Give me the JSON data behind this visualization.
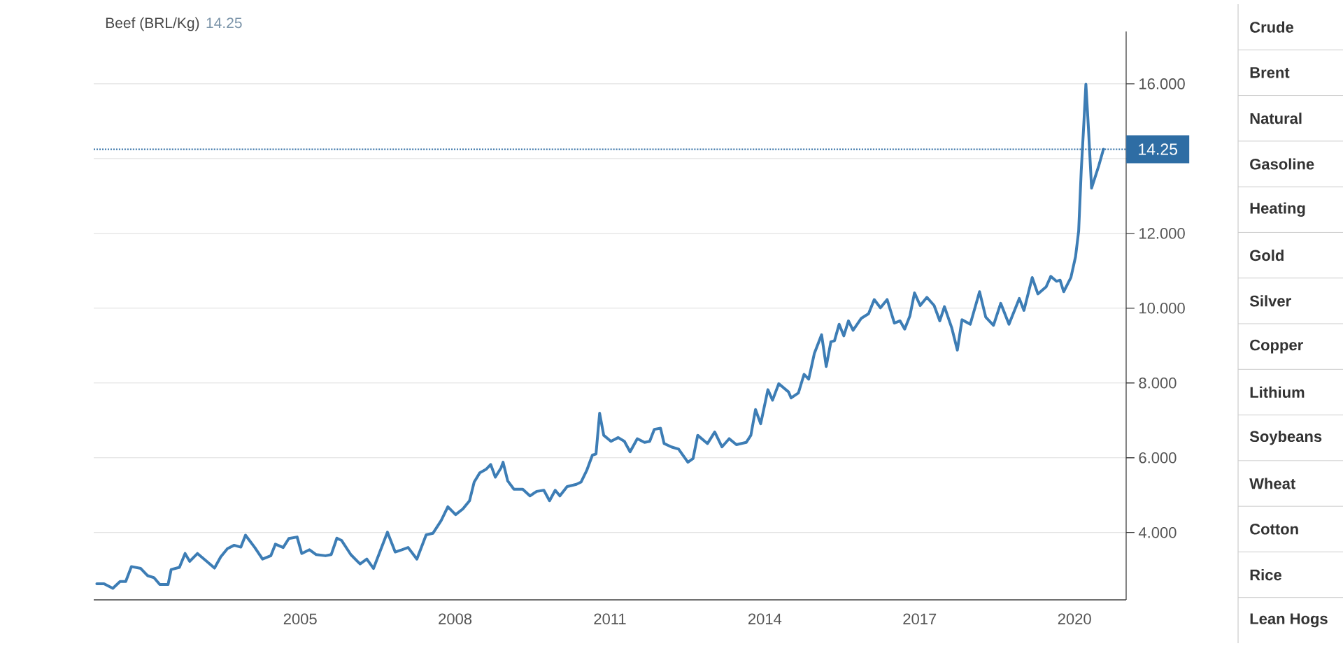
{
  "chart_data": {
    "type": "line",
    "title": "Beef (BRL/Kg)",
    "subtitle": "14.25",
    "color": "#3d7db5",
    "x": [
      2001.06,
      2001.2,
      2001.37,
      2001.51,
      2001.62,
      2001.73,
      2001.91,
      2002.04,
      2002.17,
      2002.28,
      2002.44,
      2002.5,
      2002.66,
      2002.77,
      2002.86,
      2003.01,
      2003.19,
      2003.34,
      2003.46,
      2003.59,
      2003.72,
      2003.85,
      2003.94,
      2004.12,
      2004.27,
      2004.43,
      2004.52,
      2004.67,
      2004.78,
      2004.94,
      2005.03,
      2005.18,
      2005.31,
      2005.49,
      2005.6,
      2005.71,
      2005.8,
      2005.98,
      2006.16,
      2006.29,
      2006.42,
      2006.55,
      2006.69,
      2006.84,
      2006.97,
      2007.09,
      2007.26,
      2007.44,
      2007.57,
      2007.73,
      2007.86,
      2008.01,
      2008.15,
      2008.28,
      2008.37,
      2008.48,
      2008.6,
      2008.69,
      2008.78,
      2008.89,
      2008.93,
      2009.02,
      2009.14,
      2009.31,
      2009.45,
      2009.58,
      2009.72,
      2009.83,
      2009.94,
      2010.03,
      2010.17,
      2010.35,
      2010.44,
      2010.55,
      2010.66,
      2010.73,
      2010.8,
      2010.88,
      2011.02,
      2011.16,
      2011.28,
      2011.39,
      2011.53,
      2011.67,
      2011.77,
      2011.86,
      2011.98,
      2012.05,
      2012.19,
      2012.33,
      2012.51,
      2012.61,
      2012.7,
      2012.89,
      2013.03,
      2013.17,
      2013.31,
      2013.45,
      2013.64,
      2013.73,
      2013.82,
      2013.92,
      2014.06,
      2014.15,
      2014.27,
      2014.46,
      2014.51,
      2014.65,
      2014.76,
      2014.85,
      2014.96,
      2015.1,
      2015.19,
      2015.28,
      2015.35,
      2015.44,
      2015.53,
      2015.62,
      2015.71,
      2015.87,
      2016.01,
      2016.12,
      2016.24,
      2016.37,
      2016.51,
      2016.62,
      2016.71,
      2016.81,
      2016.9,
      2017.01,
      2017.14,
      2017.28,
      2017.39,
      2017.48,
      2017.62,
      2017.73,
      2017.82,
      2017.98,
      2018.16,
      2018.28,
      2018.43,
      2018.57,
      2018.73,
      2018.93,
      2019.02,
      2019.18,
      2019.29,
      2019.45,
      2019.54,
      2019.65,
      2019.72,
      2019.79,
      2019.93,
      2020.02,
      2020.08,
      2020.13,
      2020.18,
      2020.22,
      2020.27,
      2020.33,
      2020.47,
      2020.56
    ],
    "values": [
      2.63,
      2.63,
      2.51,
      2.69,
      2.69,
      3.09,
      3.04,
      2.85,
      2.79,
      2.61,
      2.61,
      3.01,
      3.07,
      3.44,
      3.23,
      3.44,
      3.23,
      3.05,
      3.35,
      3.57,
      3.66,
      3.61,
      3.93,
      3.6,
      3.29,
      3.38,
      3.69,
      3.6,
      3.84,
      3.88,
      3.44,
      3.54,
      3.41,
      3.38,
      3.41,
      3.85,
      3.79,
      3.41,
      3.16,
      3.29,
      3.04,
      3.51,
      4.01,
      3.48,
      3.54,
      3.6,
      3.29,
      3.94,
      3.98,
      4.32,
      4.69,
      4.48,
      4.63,
      4.85,
      5.35,
      5.6,
      5.69,
      5.82,
      5.48,
      5.73,
      5.88,
      5.38,
      5.16,
      5.16,
      4.98,
      5.1,
      5.13,
      4.85,
      5.13,
      4.98,
      5.23,
      5.29,
      5.35,
      5.66,
      6.07,
      6.1,
      7.19,
      6.6,
      6.44,
      6.54,
      6.44,
      6.16,
      6.51,
      6.41,
      6.44,
      6.76,
      6.79,
      6.38,
      6.29,
      6.23,
      5.88,
      5.98,
      6.6,
      6.38,
      6.69,
      6.29,
      6.51,
      6.35,
      6.41,
      6.6,
      7.29,
      6.91,
      7.82,
      7.54,
      7.98,
      7.76,
      7.6,
      7.73,
      8.23,
      8.1,
      8.79,
      9.29,
      8.44,
      9.1,
      9.13,
      9.57,
      9.26,
      9.66,
      9.41,
      9.73,
      9.85,
      10.23,
      10.01,
      10.23,
      9.6,
      9.66,
      9.44,
      9.79,
      10.41,
      10.07,
      10.29,
      10.07,
      9.66,
      10.04,
      9.48,
      8.88,
      9.69,
      9.57,
      10.44,
      9.76,
      9.54,
      10.13,
      9.57,
      10.26,
      9.94,
      10.82,
      10.38,
      10.57,
      10.85,
      10.72,
      10.75,
      10.44,
      10.82,
      11.38,
      12.06,
      13.68,
      14.93,
      15.99,
      14.8,
      13.21,
      13.81,
      14.25
    ],
    "xlim": [
      2001,
      2021
    ],
    "xticks": [
      2005,
      2008,
      2011,
      2014,
      2017,
      2020
    ],
    "ylim": [
      2.2,
      17.4
    ],
    "yticks": [
      {
        "value": 4,
        "label": "4.000"
      },
      {
        "value": 6,
        "label": "6.000"
      },
      {
        "value": 8,
        "label": "8.000"
      },
      {
        "value": 10,
        "label": "10.000"
      },
      {
        "value": 12,
        "label": "12.000"
      },
      {
        "value": 14,
        "label": null
      },
      {
        "value": 16,
        "label": "16.000"
      }
    ],
    "grid": "y",
    "ref_lines": [
      {
        "axis": "y",
        "value": 14.25,
        "label": "14.25",
        "color": "#2e6da4",
        "line_style": "dotted"
      }
    ],
    "annotations": [
      "Crude",
      "Brent",
      "Natural",
      "Gasoline",
      "Heating",
      "Gold",
      "Silver",
      "Copper",
      "Lithium",
      "Soybeans",
      "Wheat",
      "Cotton",
      "Rice",
      "Lean Hogs"
    ]
  }
}
